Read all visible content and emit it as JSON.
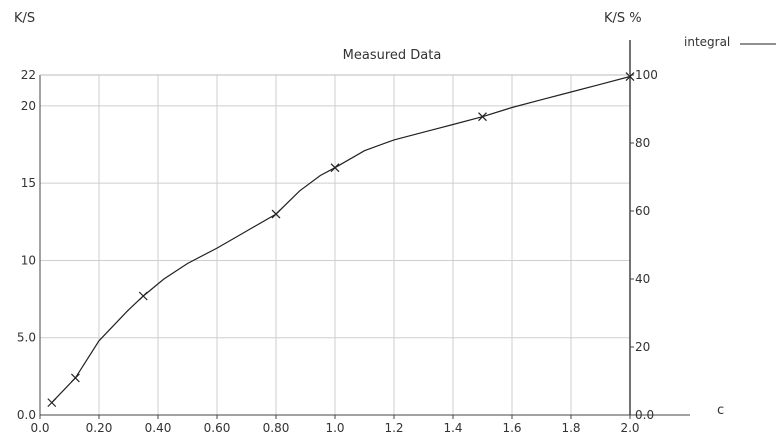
{
  "chart_data": {
    "type": "line",
    "title": "Measured Data",
    "y_left_label": "K/S",
    "y_right_label": "K/S %",
    "xlabel": "c",
    "legend": {
      "label": "integral",
      "placement": "top-right"
    },
    "xlim": [
      0.0,
      2.0
    ],
    "ylim_left": [
      0.0,
      22.0
    ],
    "ylim_right": [
      0.0,
      100.0
    ],
    "grid": true,
    "x_ticks": [
      {
        "value": 0.0,
        "label": "0.0"
      },
      {
        "value": 0.2,
        "label": "0.20"
      },
      {
        "value": 0.4,
        "label": "0.40"
      },
      {
        "value": 0.6,
        "label": "0.60"
      },
      {
        "value": 0.8,
        "label": "0.80"
      },
      {
        "value": 1.0,
        "label": "1.0"
      },
      {
        "value": 1.2,
        "label": "1.2"
      },
      {
        "value": 1.4,
        "label": "1.4"
      },
      {
        "value": 1.6,
        "label": "1.6"
      },
      {
        "value": 1.8,
        "label": "1.8"
      },
      {
        "value": 2.0,
        "label": "2.0"
      }
    ],
    "y_left_ticks": [
      {
        "value": 0.0,
        "label": "0.0"
      },
      {
        "value": 5.0,
        "label": "5.0"
      },
      {
        "value": 10.0,
        "label": "10"
      },
      {
        "value": 15.0,
        "label": "15"
      },
      {
        "value": 20.0,
        "label": "20"
      },
      {
        "value": 22.0,
        "label": "22"
      }
    ],
    "y_right_ticks": [
      {
        "value": 0,
        "label": "0.0"
      },
      {
        "value": 20,
        "label": "20"
      },
      {
        "value": 40,
        "label": "40"
      },
      {
        "value": 60,
        "label": "60"
      },
      {
        "value": 80,
        "label": "80"
      },
      {
        "value": 100,
        "label": "100"
      }
    ],
    "series": [
      {
        "name": "integral",
        "color": "#222222",
        "line_x": [
          0.04,
          0.12,
          0.2,
          0.3,
          0.35,
          0.42,
          0.5,
          0.6,
          0.7,
          0.8,
          0.88,
          0.95,
          1.0,
          1.1,
          1.2,
          1.3,
          1.4,
          1.5,
          1.6,
          1.7,
          1.8,
          1.9,
          2.0
        ],
        "line_y": [
          0.8,
          2.4,
          4.8,
          6.8,
          7.7,
          8.8,
          9.8,
          10.8,
          11.9,
          13.0,
          14.5,
          15.5,
          16.0,
          17.1,
          17.8,
          18.3,
          18.8,
          19.3,
          19.9,
          20.4,
          20.9,
          21.4,
          21.9
        ],
        "markers_x": [
          0.04,
          0.12,
          0.35,
          0.8,
          1.0,
          1.5,
          2.0
        ],
        "markers_y": [
          0.8,
          2.4,
          7.7,
          13.0,
          16.0,
          19.3,
          21.9
        ]
      }
    ]
  }
}
